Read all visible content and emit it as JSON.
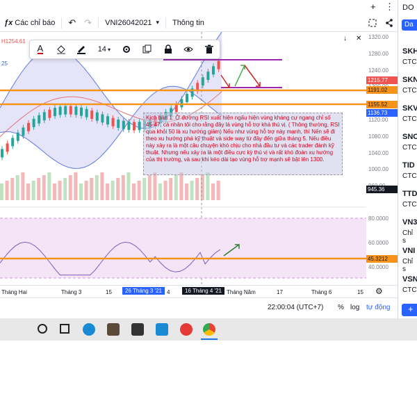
{
  "topbar": {
    "plus_glyph": "+",
    "more_glyph": "⋮"
  },
  "toolbar": {
    "indicators_glyph": "ƒx",
    "indicators_label": "Các chỉ báo",
    "undo_glyph": "↶",
    "redo_glyph": "↷",
    "symbol": "VNI26042021",
    "symbol_chevron": "▾",
    "info_label": "Thông tin"
  },
  "drawing_toolbar": {
    "font_size": "14",
    "text_color_glyph": "A",
    "chevron": "▾"
  },
  "chart": {
    "ohlc_partial": "H1254.61",
    "bb_partial": "25",
    "price_ticks": [
      "1320.00",
      "1280.00",
      "1240.00",
      "1200.00",
      "1160.00",
      "1120.00",
      "1080.00",
      "1040.00",
      "1000.00",
      "960.00"
    ],
    "price_labels": [
      {
        "value": "1215.77",
        "color": "#ef5350",
        "text_color": "#ffffff"
      },
      {
        "value": "1191.02",
        "color": "#f7931a",
        "text_color": "#131722"
      },
      {
        "value": "1155.52",
        "color": "#f7931a",
        "text_color": "#131722"
      },
      {
        "value": "1136.73",
        "color": "#2962ff",
        "text_color": "#ffffff"
      },
      {
        "value": "945.36",
        "color": "#131722",
        "text_color": "#ffffff"
      }
    ],
    "rsi_ticks": [
      "80.0000",
      "60.0000",
      "40.0000"
    ],
    "rsi_label": {
      "value": "45.3212",
      "color": "#f7931a"
    },
    "note": "Kịch bản 1: Ở đường RSI xuất hiện ngấu hiện vùng kháng cự ngang chỉ số 45-47, cá nhân tôi cho rằng đây là vùng hỗ trợ khá thú vị. ( Thông thường, RSI qua khỏi 50 là xu hướng giảm) Nếu như vùng hỗ trợ này mạnh, thì Nến sẽ đi theo xu hướng phá kỹ thuật và side way từ đây đến giữa tháng 5. Nếu điều này xảy ra là một câu chuyện khó chịu cho nhà đầu tư và các trader đánh kỹ thuật. Nhưng nếu xảy ra là một điều cực kỳ thú vị và rất khó đoán xu hướng của thị trường, và sau khi kéo dài tạo vùng hỗ trợ mạnh sẽ bật lên 1300.",
    "colors": {
      "up": "#26a69a",
      "down": "#ef5350",
      "bb_fill": "#dcd8f5",
      "bb_line": "#5b7be0",
      "orange": "#f7931a",
      "purple": "#9c27b0",
      "rsi_bg": "#f3e5f5"
    }
  },
  "time_axis": {
    "labels": [
      "Tháng Hai",
      "Tháng 3",
      "15",
      "26 Tháng 3 '21",
      "4",
      "16 Tháng 4 '21",
      "Tháng Năm",
      "17",
      "Tháng 6",
      "15"
    ]
  },
  "bottom": {
    "time": "22:00:04 (UTC+7)",
    "percent": "%",
    "log": "log",
    "auto": "tự động"
  },
  "sidebar": {
    "header": "DO",
    "button": "Da",
    "items": [
      {
        "code": "SKH",
        "sub": "CTC"
      },
      {
        "code": "SKN",
        "sub": "CTC"
      },
      {
        "code": "SKV",
        "sub": "CTC"
      },
      {
        "code": "SNC",
        "sub": "CTC"
      },
      {
        "code": "TID",
        "sub": "CTC"
      },
      {
        "code": "TTD",
        "sub": "CTC"
      },
      {
        "code": "VN3",
        "sub": "Chỉ s"
      },
      {
        "code": "VNI",
        "sub": "Chỉ s"
      },
      {
        "code": "VSN",
        "sub": "CTC"
      }
    ],
    "plus_glyph": "+"
  }
}
